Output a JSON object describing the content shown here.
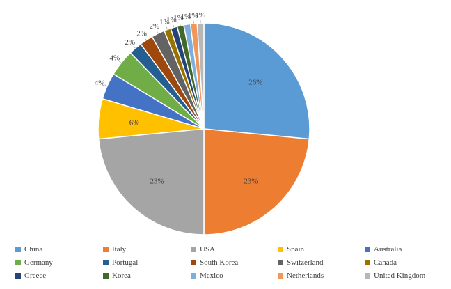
{
  "chart_data": {
    "type": "pie",
    "title": "",
    "categories": [
      "China",
      "Italy",
      "USA",
      "Spain",
      "Australia",
      "Germany",
      "Portugal",
      "South Korea",
      "Switzerland",
      "Canada",
      "Greece",
      "Korea",
      "Mexico",
      "Netherlands",
      "United Kingdom"
    ],
    "values": [
      26,
      23,
      23,
      6,
      4,
      4,
      2,
      2,
      2,
      1,
      1,
      1,
      1,
      1,
      1
    ],
    "labels": [
      "26%",
      "23%",
      "23%",
      "6%",
      "4%",
      "4%",
      "2%",
      "2%",
      "2%",
      "1%",
      "1%",
      "1%",
      "1%",
      "1%",
      "1%"
    ],
    "colors": [
      "#5B9BD5",
      "#ED7D31",
      "#A5A5A5",
      "#FFC000",
      "#4472C4",
      "#70AD47",
      "#255E91",
      "#9E480E",
      "#636363",
      "#997300",
      "#264478",
      "#43682B",
      "#7CAFDD",
      "#F1975A",
      "#B7B7B7"
    ],
    "legend_position": "bottom"
  }
}
